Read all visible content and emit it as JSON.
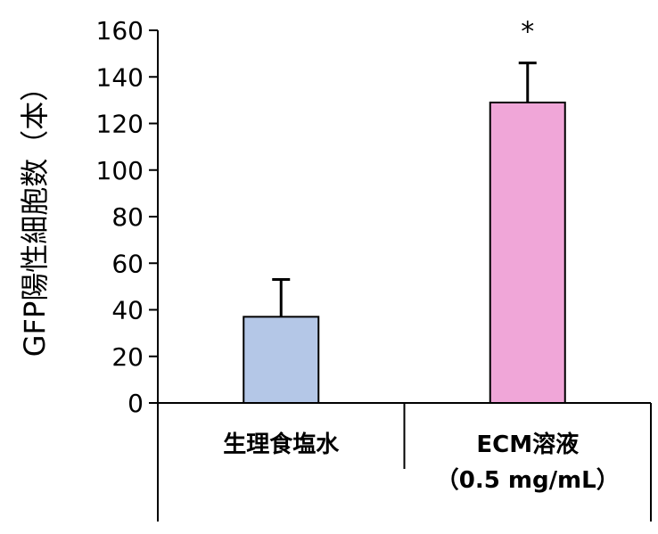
{
  "chart_data": {
    "type": "bar",
    "ylabel": "GFP陽性細胞数（本）",
    "ylim": [
      0,
      160
    ],
    "yticks": [
      0,
      20,
      40,
      60,
      80,
      100,
      120,
      140,
      160
    ],
    "categories": [
      {
        "label_lines": [
          "生理食塩水"
        ]
      },
      {
        "label_lines": [
          "ECM溶液",
          "（0.5 mg/mL）"
        ]
      }
    ],
    "values": [
      37,
      129
    ],
    "errors": [
      16,
      17
    ],
    "significance": [
      "",
      "*"
    ],
    "colors": [
      "#b4c7e7",
      "#f0a6d8"
    ]
  }
}
